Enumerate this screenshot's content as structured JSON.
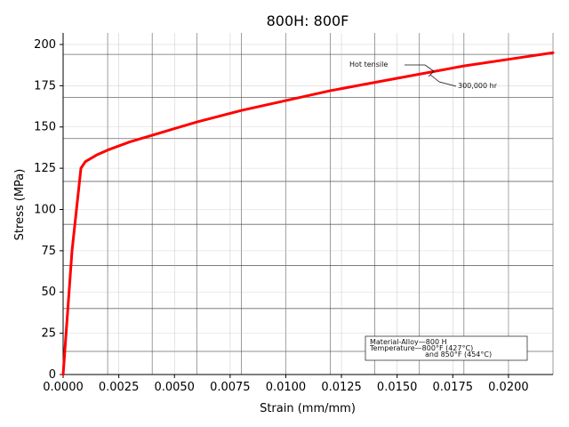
{
  "chart_data": {
    "type": "line",
    "title": "800H: 800F",
    "xlabel": "Strain (mm/mm)",
    "ylabel": "Stress (MPa)",
    "xlim": [
      0.0,
      0.022
    ],
    "ylim": [
      0,
      207
    ],
    "xticks": [
      "0.0000",
      "0.0025",
      "0.0050",
      "0.0075",
      "0.0100",
      "0.0125",
      "0.0150",
      "0.0175",
      "0.0200"
    ],
    "xtick_values": [
      0.0,
      0.0025,
      0.005,
      0.0075,
      0.01,
      0.0125,
      0.015,
      0.0175,
      0.02
    ],
    "yticks": [
      "0",
      "25",
      "50",
      "75",
      "100",
      "125",
      "150",
      "175",
      "200"
    ],
    "ytick_values": [
      0,
      25,
      50,
      75,
      100,
      125,
      150,
      175,
      200
    ],
    "grid": true,
    "series": [
      {
        "color": "#ff0000",
        "x": [
          0.0,
          0.0004,
          0.0008,
          0.001,
          0.0015,
          0.002,
          0.003,
          0.004,
          0.005,
          0.006,
          0.008,
          0.01,
          0.012,
          0.014,
          0.016,
          0.018,
          0.02,
          0.022
        ],
        "y": [
          0,
          75,
          125,
          129,
          133,
          136,
          141,
          145,
          149,
          153,
          160,
          166,
          172,
          177,
          182,
          187,
          191,
          195
        ]
      }
    ],
    "annotations": {
      "top_line_1": "Hot tensile",
      "top_line_2": "300,000 hr",
      "legend_box": [
        "Material-Alloy—800 H",
        "Temperature—800°F (427°C)",
        "and 850°F (454°C)"
      ]
    }
  }
}
